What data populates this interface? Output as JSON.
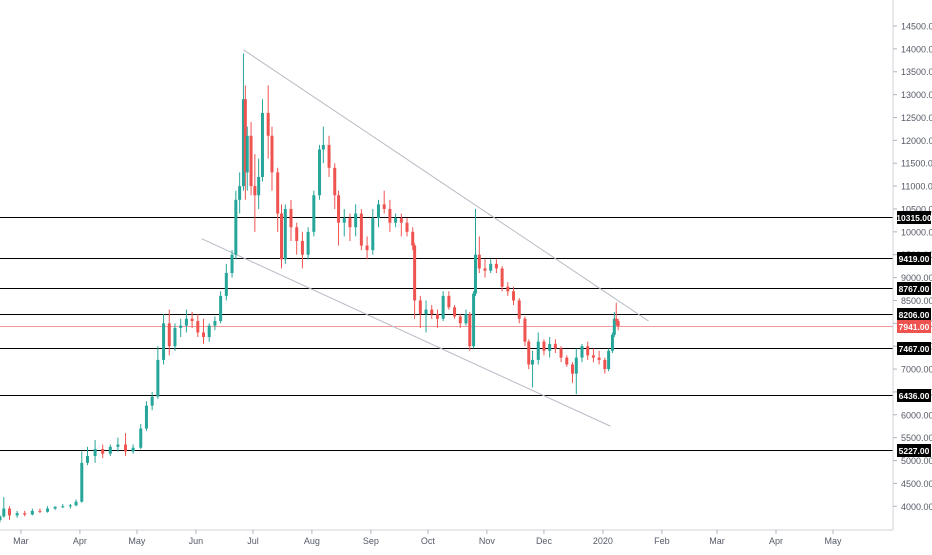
{
  "chart_data": {
    "type": "candlestick",
    "instrument": "",
    "y_axis": {
      "ticks": [
        "4000.00",
        "4500.00",
        "5000.00",
        "5500.00",
        "6000.00",
        "6500.00",
        "7000.00",
        "7500.00",
        "8000.00",
        "8500.00",
        "9000.00",
        "9500.00",
        "10000.00",
        "10500.00",
        "11000.00",
        "11500.00",
        "12000.00",
        "12500.00",
        "13000.00",
        "13500.00",
        "14000.00",
        "14500.00"
      ],
      "range": [
        3700,
        14850
      ]
    },
    "x_axis": {
      "tick_labels": [
        "Mar",
        "Apr",
        "May",
        "Jun",
        "Jul",
        "Aug",
        "Sep",
        "Oct",
        "Nov",
        "Dec",
        "2020",
        "Feb",
        "Mar",
        "Apr",
        "May"
      ],
      "tick_dates": [
        "2019-03-01",
        "2019-04-01",
        "2019-05-01",
        "2019-06-01",
        "2019-07-01",
        "2019-08-01",
        "2019-09-01",
        "2019-10-01",
        "2019-11-01",
        "2019-12-01",
        "2020-01-01",
        "2020-02-01",
        "2020-03-01",
        "2020-04-01",
        "2020-05-01"
      ],
      "range": [
        "2019-02-18",
        "2020-05-22"
      ]
    },
    "horizontal_levels": [
      {
        "price": 10315,
        "label": "10315.00"
      },
      {
        "price": 9419,
        "label": "9419.00"
      },
      {
        "price": 8767,
        "label": "8767.00"
      },
      {
        "price": 8206,
        "label": "8206.00"
      },
      {
        "price": 7467,
        "label": "7467.00"
      },
      {
        "price": 6436,
        "label": "6436.00"
      },
      {
        "price": 5227,
        "label": "5227.00"
      }
    ],
    "last_price": {
      "price": 7941,
      "label": "7941.00",
      "color": "#ef5350"
    },
    "trendlines": [
      {
        "name": "upper",
        "from": [
          "2019-06-26",
          13980
        ],
        "to": [
          "2020-01-25",
          8050
        ]
      },
      {
        "name": "lower",
        "from": [
          "2019-06-04",
          9850
        ],
        "to": [
          "2020-01-05",
          5750
        ]
      }
    ],
    "candles": [
      [
        "2019-02-18",
        3700,
        3800,
        3650,
        3780
      ],
      [
        "2019-02-20",
        3780,
        4200,
        3750,
        3950
      ],
      [
        "2019-02-23",
        3950,
        4000,
        3700,
        3800
      ],
      [
        "2019-02-27",
        3800,
        3900,
        3750,
        3850
      ],
      [
        "2019-03-03",
        3850,
        3900,
        3780,
        3820
      ],
      [
        "2019-03-07",
        3820,
        3950,
        3800,
        3900
      ],
      [
        "2019-03-11",
        3900,
        3950,
        3850,
        3880
      ],
      [
        "2019-03-15",
        3880,
        4000,
        3860,
        3950
      ],
      [
        "2019-03-19",
        3950,
        4000,
        3920,
        3990
      ],
      [
        "2019-03-23",
        3990,
        4050,
        3960,
        4000
      ],
      [
        "2019-03-27",
        4000,
        4050,
        3950,
        4020
      ],
      [
        "2019-03-30",
        4020,
        4150,
        4000,
        4100
      ],
      [
        "2019-04-02",
        4100,
        5200,
        4080,
        4950
      ],
      [
        "2019-04-05",
        4950,
        5300,
        4900,
        5100
      ],
      [
        "2019-04-09",
        5100,
        5450,
        4950,
        5250
      ],
      [
        "2019-04-13",
        5250,
        5350,
        5050,
        5150
      ],
      [
        "2019-04-17",
        5150,
        5350,
        5100,
        5300
      ],
      [
        "2019-04-21",
        5300,
        5500,
        5200,
        5350
      ],
      [
        "2019-04-25",
        5350,
        5600,
        5100,
        5200
      ],
      [
        "2019-04-29",
        5200,
        5350,
        5150,
        5280
      ],
      [
        "2019-05-03",
        5280,
        5800,
        5250,
        5700
      ],
      [
        "2019-05-06",
        5700,
        6300,
        5650,
        6200
      ],
      [
        "2019-05-09",
        6200,
        6500,
        6100,
        6400
      ],
      [
        "2019-05-12",
        6400,
        7500,
        6350,
        7200
      ],
      [
        "2019-05-15",
        7200,
        8200,
        7100,
        8000
      ],
      [
        "2019-05-18",
        8000,
        8300,
        7300,
        7500
      ],
      [
        "2019-05-21",
        7500,
        8000,
        7400,
        7900
      ],
      [
        "2019-05-24",
        7900,
        8100,
        7700,
        7950
      ],
      [
        "2019-05-27",
        7950,
        8300,
        7800,
        8100
      ],
      [
        "2019-05-30",
        8100,
        8250,
        7900,
        8050
      ],
      [
        "2019-06-02",
        8050,
        8200,
        7700,
        7800
      ],
      [
        "2019-06-05",
        7800,
        8100,
        7550,
        7700
      ],
      [
        "2019-06-08",
        7700,
        8000,
        7600,
        7950
      ],
      [
        "2019-06-11",
        7950,
        8150,
        7850,
        8050
      ],
      [
        "2019-06-14",
        8050,
        8700,
        8000,
        8600
      ],
      [
        "2019-06-17",
        8600,
        9300,
        8500,
        9100
      ],
      [
        "2019-06-20",
        9100,
        9600,
        9000,
        9500
      ],
      [
        "2019-06-22",
        9500,
        10900,
        9400,
        10700
      ],
      [
        "2019-06-24",
        10700,
        11300,
        10400,
        11000
      ],
      [
        "2019-06-26",
        11000,
        13900,
        10900,
        12900
      ],
      [
        "2019-06-27",
        12900,
        13200,
        10700,
        11300
      ],
      [
        "2019-06-28",
        11300,
        12300,
        10900,
        12100
      ],
      [
        "2019-06-30",
        12100,
        12400,
        10800,
        11000
      ],
      [
        "2019-07-02",
        11000,
        11700,
        10000,
        10800
      ],
      [
        "2019-07-04",
        10800,
        11600,
        10500,
        11200
      ],
      [
        "2019-07-06",
        11200,
        12900,
        11100,
        12600
      ],
      [
        "2019-07-09",
        12600,
        13200,
        11600,
        12100
      ],
      [
        "2019-07-11",
        12100,
        12300,
        10900,
        11300
      ],
      [
        "2019-07-14",
        11300,
        11400,
        10000,
        10400
      ],
      [
        "2019-07-16",
        10400,
        10600,
        9200,
        9400
      ],
      [
        "2019-07-18",
        9400,
        10600,
        9300,
        10500
      ],
      [
        "2019-07-21",
        10500,
        10700,
        9800,
        10100
      ],
      [
        "2019-07-24",
        10100,
        10200,
        9500,
        9800
      ],
      [
        "2019-07-27",
        9800,
        10000,
        9200,
        9500
      ],
      [
        "2019-07-30",
        9500,
        10100,
        9400,
        10000
      ],
      [
        "2019-08-02",
        10000,
        10900,
        9900,
        10800
      ],
      [
        "2019-08-05",
        10800,
        11900,
        10700,
        11800
      ],
      [
        "2019-08-07",
        11800,
        12300,
        11500,
        11900
      ],
      [
        "2019-08-10",
        11900,
        12100,
        11200,
        11400
      ],
      [
        "2019-08-13",
        11400,
        11500,
        10500,
        10800
      ],
      [
        "2019-08-15",
        10800,
        10900,
        9700,
        10200
      ],
      [
        "2019-08-18",
        10200,
        10500,
        9900,
        10300
      ],
      [
        "2019-08-21",
        10300,
        10400,
        9800,
        10100
      ],
      [
        "2019-08-24",
        10100,
        10600,
        9900,
        10400
      ],
      [
        "2019-08-27",
        10400,
        10500,
        9600,
        9700
      ],
      [
        "2019-08-30",
        9700,
        9900,
        9400,
        9600
      ],
      [
        "2019-09-02",
        9600,
        10500,
        9500,
        10300
      ],
      [
        "2019-09-05",
        10300,
        10700,
        10100,
        10600
      ],
      [
        "2019-09-08",
        10600,
        10900,
        10400,
        10500
      ],
      [
        "2019-09-11",
        10500,
        10700,
        10000,
        10200
      ],
      [
        "2019-09-14",
        10200,
        10400,
        10100,
        10300
      ],
      [
        "2019-09-17",
        10300,
        10400,
        9900,
        10200
      ],
      [
        "2019-09-20",
        10200,
        10300,
        9900,
        10000
      ],
      [
        "2019-09-23",
        10000,
        10100,
        9600,
        9700
      ],
      [
        "2019-09-24",
        9700,
        9750,
        8100,
        8500
      ],
      [
        "2019-09-27",
        8500,
        8600,
        7900,
        8200
      ],
      [
        "2019-09-30",
        8200,
        8500,
        7800,
        8300
      ],
      [
        "2019-10-03",
        8300,
        8400,
        8100,
        8200
      ],
      [
        "2019-10-06",
        8200,
        8300,
        7900,
        8100
      ],
      [
        "2019-10-09",
        8100,
        8700,
        8050,
        8600
      ],
      [
        "2019-10-12",
        8600,
        8700,
        8300,
        8350
      ],
      [
        "2019-10-15",
        8350,
        8400,
        8100,
        8150
      ],
      [
        "2019-10-18",
        8150,
        8200,
        7900,
        8000
      ],
      [
        "2019-10-21",
        8000,
        8300,
        7950,
        8200
      ],
      [
        "2019-10-23",
        8200,
        8250,
        7400,
        7500
      ],
      [
        "2019-10-25",
        7500,
        8700,
        7450,
        8650
      ],
      [
        "2019-10-26",
        8650,
        10500,
        8600,
        9500
      ],
      [
        "2019-10-28",
        9500,
        9900,
        9100,
        9200
      ],
      [
        "2019-10-31",
        9200,
        9400,
        9000,
        9150
      ],
      [
        "2019-11-03",
        9150,
        9400,
        9100,
        9300
      ],
      [
        "2019-11-06",
        9300,
        9400,
        9100,
        9200
      ],
      [
        "2019-11-09",
        9200,
        9250,
        8700,
        8800
      ],
      [
        "2019-11-12",
        8800,
        8900,
        8600,
        8700
      ],
      [
        "2019-11-15",
        8700,
        8800,
        8400,
        8500
      ],
      [
        "2019-11-18",
        8500,
        8550,
        8000,
        8100
      ],
      [
        "2019-11-21",
        8100,
        8150,
        7500,
        7600
      ],
      [
        "2019-11-23",
        7600,
        7650,
        7000,
        7100
      ],
      [
        "2019-11-25",
        7100,
        7400,
        6600,
        7200
      ],
      [
        "2019-11-28",
        7200,
        7800,
        7100,
        7600
      ],
      [
        "2019-12-01",
        7600,
        7650,
        7300,
        7400
      ],
      [
        "2019-12-04",
        7400,
        7700,
        7250,
        7550
      ],
      [
        "2019-12-07",
        7550,
        7650,
        7350,
        7450
      ],
      [
        "2019-12-10",
        7450,
        7500,
        7150,
        7250
      ],
      [
        "2019-12-13",
        7250,
        7300,
        7050,
        7100
      ],
      [
        "2019-12-16",
        7100,
        7150,
        6700,
        6900
      ],
      [
        "2019-12-18",
        6900,
        7450,
        6450,
        7250
      ],
      [
        "2019-12-21",
        7250,
        7550,
        7150,
        7500
      ],
      [
        "2019-12-24",
        7500,
        7600,
        7200,
        7300
      ],
      [
        "2019-12-27",
        7300,
        7450,
        7150,
        7250
      ],
      [
        "2019-12-30",
        7250,
        7400,
        7100,
        7200
      ],
      [
        "2020-01-02",
        7200,
        7250,
        6900,
        7000
      ],
      [
        "2020-01-04",
        7000,
        7450,
        6950,
        7400
      ],
      [
        "2020-01-06",
        7400,
        7800,
        7350,
        7750
      ],
      [
        "2020-01-07",
        7750,
        8250,
        7700,
        8100
      ],
      [
        "2020-01-08",
        8100,
        8450,
        7950,
        8050
      ],
      [
        "2020-01-09",
        8050,
        8100,
        7850,
        7941
      ]
    ]
  }
}
